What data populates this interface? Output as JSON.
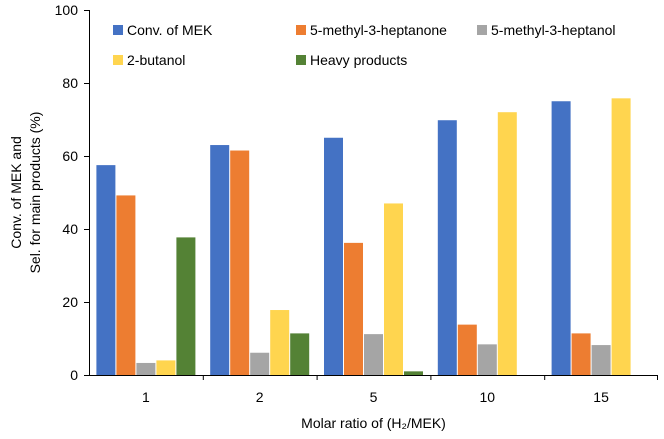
{
  "chart_data": {
    "type": "bar",
    "title": "",
    "xlabel": "Molar ratio of (H₂/MEK)",
    "ylabel_line1": "Conv. of MEK and",
    "ylabel_line2": "Sel. for main products (%)",
    "ylim": [
      0,
      100
    ],
    "yticks": [
      0,
      20,
      40,
      60,
      80,
      100
    ],
    "grid": false,
    "legend_position": "top",
    "categories": [
      "1",
      "2",
      "5",
      "10",
      "15"
    ],
    "series": [
      {
        "name": "Conv. of MEK",
        "color": "#4472C4",
        "values": [
          57.5,
          63,
          65,
          69.8,
          75
        ]
      },
      {
        "name": "5-methyl-3-heptanone",
        "color": "#ED7D31",
        "values": [
          49.2,
          61.5,
          36.2,
          13.8,
          11.4
        ]
      },
      {
        "name": "5-methyl-3-heptanol",
        "color": "#A5A5A5",
        "values": [
          3.3,
          6.1,
          11.2,
          8.4,
          8.2
        ]
      },
      {
        "name": "2-butanol",
        "color": "#FFD54F",
        "values": [
          4.0,
          17.8,
          47.0,
          72.0,
          75.8
        ]
      },
      {
        "name": "Heavy products",
        "color": "#548235",
        "values": [
          37.7,
          11.4,
          1.0,
          0,
          0
        ]
      }
    ]
  }
}
